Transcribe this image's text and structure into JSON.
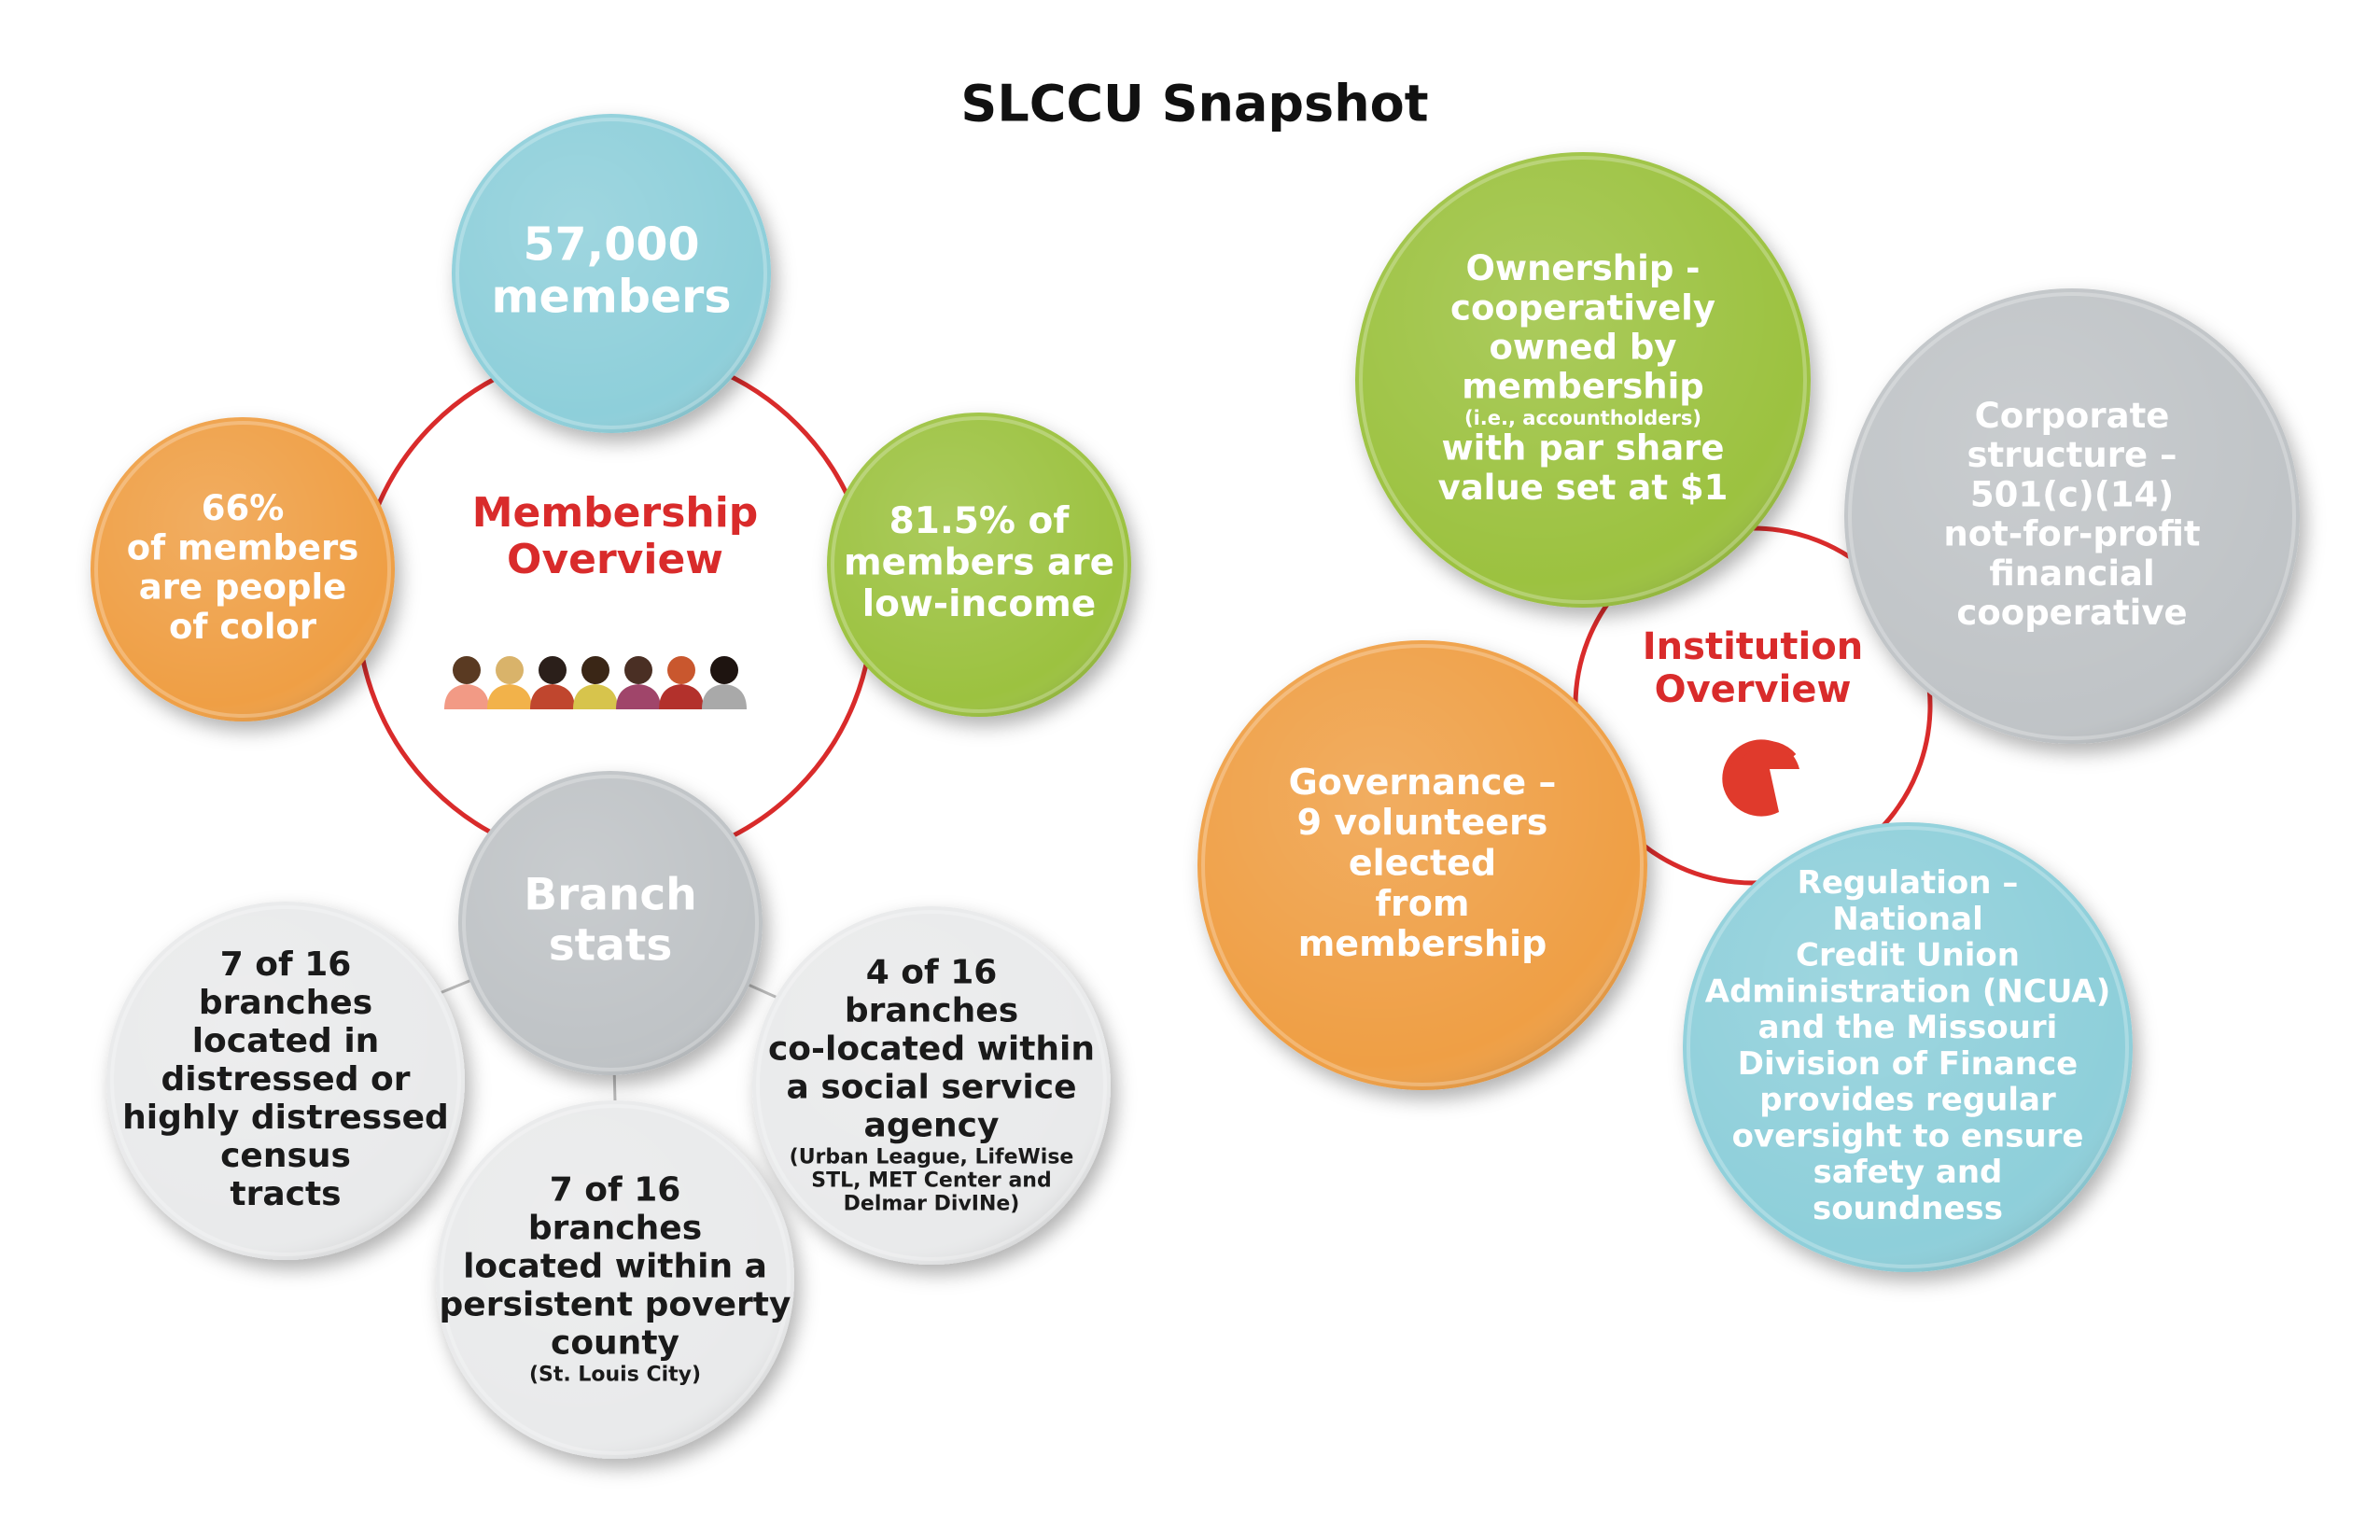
{
  "title": "SLCCU Snapshot",
  "membership": {
    "heading": [
      "Membership",
      "Overview"
    ],
    "bubbles": [
      {
        "lines": [
          "57,000",
          "members"
        ]
      },
      {
        "lines": [
          "66%",
          "of members",
          "are people",
          "of color"
        ]
      },
      {
        "lines": [
          "81.5% of",
          "members are",
          "low-income"
        ]
      }
    ],
    "branch_stats": {
      "heading": [
        "Branch",
        "stats"
      ],
      "items": [
        {
          "lines": [
            "7 of 16",
            "branches",
            "located in",
            "distressed or",
            "highly distressed",
            "census",
            "tracts"
          ]
        },
        {
          "lines": [
            "7 of 16",
            "branches",
            "located within a",
            "persistent poverty",
            "county"
          ],
          "note": [
            "(St. Louis City)"
          ]
        },
        {
          "lines": [
            "4 of 16",
            "branches",
            "co-located within",
            "a social service",
            "agency"
          ],
          "note": [
            "(Urban League, LifeWise",
            "STL, MET Center and",
            "Delmar DivINe)"
          ]
        }
      ]
    }
  },
  "institution": {
    "heading": [
      "Institution",
      "Overview"
    ],
    "bubbles": [
      {
        "lines": [
          "Ownership -",
          "cooperatively",
          "owned by",
          "membership"
        ],
        "note": [
          "(i.e., accountholders)"
        ],
        "lines_after": [
          "with par share",
          "value set at $1"
        ]
      },
      {
        "lines": [
          "Corporate",
          "structure –",
          "501(c)(14)",
          "not-for-profit",
          "financial",
          "cooperative"
        ]
      },
      {
        "lines": [
          "Governance –",
          "9 volunteers",
          "elected",
          "from",
          "membership"
        ]
      },
      {
        "lines": [
          "Regulation –",
          "National",
          "Credit Union",
          "Administration (NCUA)",
          "and the Missouri",
          "Division of Finance",
          "provides regular",
          "oversight to ensure",
          "safety and",
          "soundness"
        ]
      }
    ]
  }
}
